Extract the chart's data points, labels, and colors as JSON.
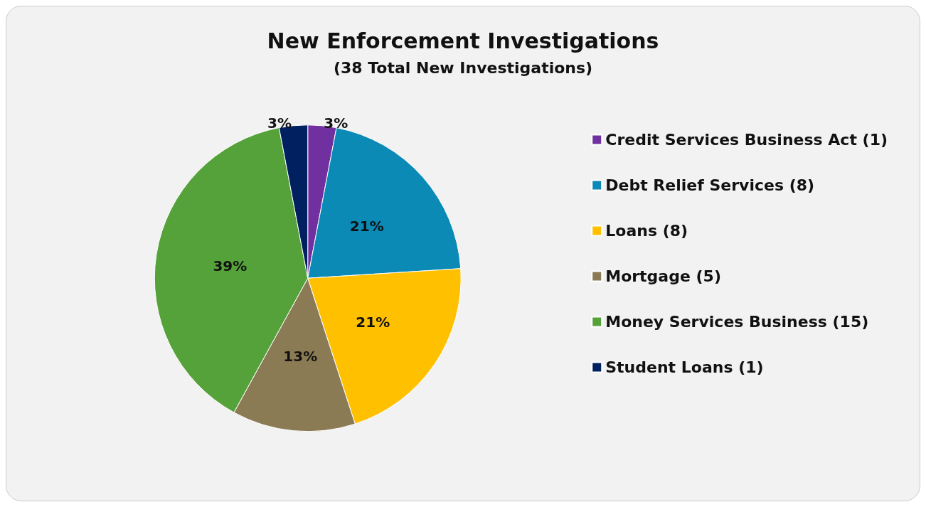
{
  "chart_data": {
    "type": "pie",
    "title": "New Enforcement Investigations",
    "subtitle": "(38 Total New Investigations)",
    "categories": [
      "Credit Services Business Act (1)",
      "Debt Relief Services (8)",
      "Loans (8)",
      "Mortgage (5)",
      "Money Services Business (15)",
      "Student Loans (1)"
    ],
    "values": [
      3,
      21,
      21,
      13,
      39,
      3
    ],
    "colors": [
      "#7030a0",
      "#0a8ab5",
      "#ffc000",
      "#8b7b55",
      "#55a13a",
      "#002060"
    ],
    "value_labels": [
      "3%",
      "21%",
      "21%",
      "13%",
      "39%",
      "3%"
    ],
    "legend": "right"
  }
}
